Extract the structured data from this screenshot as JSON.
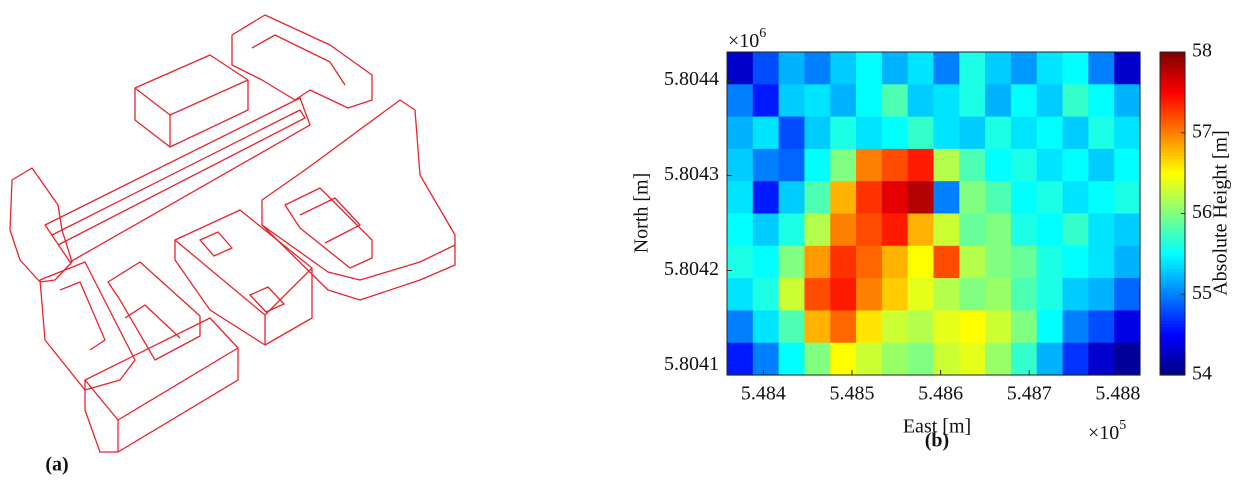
{
  "panel_a": {
    "label": "(a)"
  },
  "chart_data": {
    "type": "heatmap",
    "panel_label": "(b)",
    "xlabel": "East [m]",
    "ylabel": "North [m]",
    "x_multiplier": {
      "base": "×10",
      "exponent": "5"
    },
    "y_multiplier": {
      "base": "×10",
      "exponent": "6"
    },
    "xlim": [
      5.48359,
      5.48825
    ],
    "ylim": [
      5.80409,
      5.80443
    ],
    "xticks": [
      {
        "value": 5.484,
        "label": "5.484"
      },
      {
        "value": 5.485,
        "label": "5.485"
      },
      {
        "value": 5.486,
        "label": "5.486"
      },
      {
        "value": 5.487,
        "label": "5.487"
      },
      {
        "value": 5.488,
        "label": "5.488"
      }
    ],
    "yticks": [
      {
        "value": 5.8041,
        "label": "5.8041"
      },
      {
        "value": 5.8042,
        "label": "5.8042"
      },
      {
        "value": 5.8043,
        "label": "5.8043"
      },
      {
        "value": 5.8044,
        "label": "5.8044"
      }
    ],
    "colormap": "jet",
    "colorbar_label": "Absolute Height [m]",
    "clim": [
      54,
      58
    ],
    "cticks": [
      54,
      55,
      56,
      57,
      58
    ],
    "z": [
      [
        54.3,
        54.8,
        55.2,
        55.0,
        55.3,
        55.5,
        55.2,
        55.4,
        55.0,
        55.6,
        55.3,
        55.1,
        55.4,
        55.5,
        55.0,
        54.3
      ],
      [
        55.0,
        54.6,
        55.3,
        55.4,
        55.2,
        55.5,
        55.8,
        55.3,
        55.4,
        55.6,
        55.2,
        55.5,
        55.3,
        55.7,
        55.5,
        55.2
      ],
      [
        55.2,
        55.4,
        54.8,
        55.3,
        55.6,
        55.4,
        55.5,
        55.7,
        55.4,
        55.3,
        55.6,
        55.4,
        55.5,
        55.3,
        55.6,
        55.4
      ],
      [
        55.3,
        55.0,
        54.9,
        55.5,
        56.0,
        57.0,
        57.2,
        57.4,
        56.2,
        55.8,
        55.5,
        55.6,
        55.4,
        55.5,
        55.3,
        55.5
      ],
      [
        55.4,
        54.6,
        55.3,
        55.8,
        56.8,
        57.3,
        57.6,
        57.8,
        55.0,
        56.0,
        55.8,
        55.5,
        55.6,
        55.4,
        55.5,
        55.6
      ],
      [
        55.5,
        55.3,
        55.6,
        56.2,
        57.0,
        57.2,
        57.4,
        56.8,
        56.3,
        55.9,
        56.0,
        55.6,
        55.5,
        55.7,
        55.4,
        55.3
      ],
      [
        55.6,
        55.5,
        56.0,
        56.9,
        57.3,
        57.1,
        56.8,
        56.5,
        57.2,
        56.2,
        56.0,
        55.9,
        55.6,
        55.5,
        55.4,
        55.2
      ],
      [
        55.4,
        55.6,
        56.3,
        57.2,
        57.4,
        57.0,
        56.7,
        56.4,
        56.2,
        56.0,
        56.1,
        55.8,
        55.6,
        55.3,
        55.2,
        54.9
      ],
      [
        55.0,
        55.4,
        55.8,
        56.8,
        57.1,
        56.6,
        56.3,
        56.2,
        56.4,
        56.5,
        56.3,
        56.0,
        55.5,
        55.0,
        54.8,
        54.4
      ],
      [
        54.6,
        55.0,
        55.5,
        56.0,
        56.5,
        56.3,
        56.1,
        56.0,
        56.3,
        56.4,
        56.1,
        55.7,
        55.2,
        54.7,
        54.3,
        54.1
      ]
    ]
  }
}
